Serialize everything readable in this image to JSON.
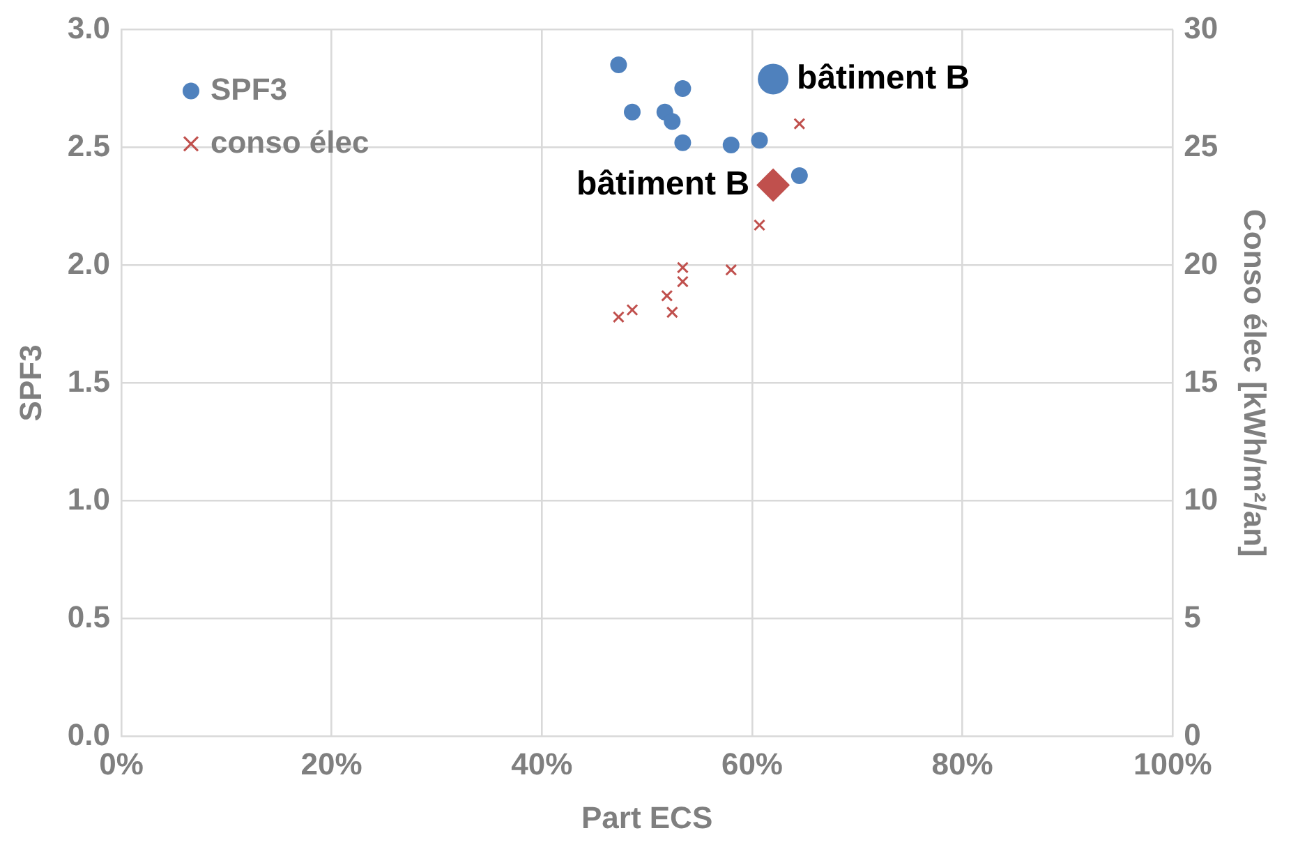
{
  "chart_data": {
    "type": "scatter",
    "xlabel": "Part ECS",
    "ylabel": "SPF3",
    "y2label": "Conso élec [kWh/m²/an]",
    "xlim": [
      0,
      1
    ],
    "xticks": [
      {
        "value": 0,
        "label": "0%"
      },
      {
        "value": 0.2,
        "label": "20%"
      },
      {
        "value": 0.4,
        "label": "40%"
      },
      {
        "value": 0.6,
        "label": "60%"
      },
      {
        "value": 0.8,
        "label": "80%"
      },
      {
        "value": 1,
        "label": "100%"
      }
    ],
    "ylim": [
      0,
      3
    ],
    "yticks": [
      {
        "value": 0,
        "label": "0.0"
      },
      {
        "value": 0.5,
        "label": "0.5"
      },
      {
        "value": 1,
        "label": "1.0"
      },
      {
        "value": 1.5,
        "label": "1.5"
      },
      {
        "value": 2,
        "label": "2.0"
      },
      {
        "value": 2.5,
        "label": "2.5"
      },
      {
        "value": 3,
        "label": "3.0"
      }
    ],
    "y2lim": [
      0,
      30
    ],
    "y2ticks": [
      0,
      5,
      10,
      15,
      20,
      25,
      30
    ],
    "grid": true,
    "legend": "top left",
    "series": [
      {
        "name": "SPF3",
        "color": "#4f81bd",
        "marker": "circle",
        "x": [
          0.473,
          0.486,
          0.534,
          0.517,
          0.524,
          0.534,
          0.58,
          0.607,
          0.645
        ],
        "values": [
          2.85,
          2.65,
          2.75,
          2.65,
          2.61,
          2.52,
          2.51,
          2.53,
          2.38
        ]
      },
      {
        "name": "conso élec",
        "color": "#c0504d",
        "marker": "cross",
        "axis": "y2",
        "x": [
          0.645,
          0.607,
          0.534,
          0.534,
          0.58,
          0.519,
          0.524,
          0.486,
          0.473
        ],
        "values": [
          26.0,
          21.7,
          19.9,
          19.3,
          19.8,
          18.7,
          18.0,
          18.1,
          17.8
        ]
      },
      {
        "color": "#4f81bd",
        "marker": "circle",
        "x": [
          0.62
        ],
        "values": [
          2.79
        ]
      },
      {
        "color": "#c0504d",
        "marker": "diamond",
        "axis": "y2",
        "x": [
          0.62
        ],
        "values": [
          23.4
        ]
      }
    ],
    "annotations": [
      {
        "text": "bâtiment B",
        "x": 0.62,
        "y": 2.79
      },
      {
        "text": "bâtiment B",
        "x": 0.62,
        "y": 2.34
      }
    ]
  }
}
